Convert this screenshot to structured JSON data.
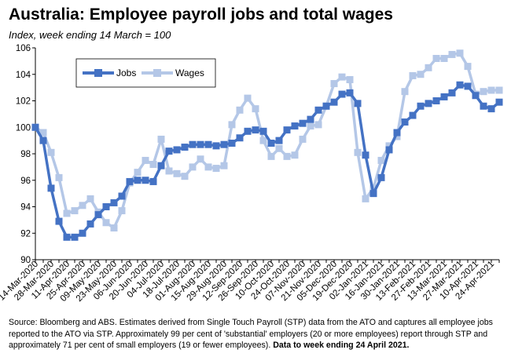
{
  "header": {
    "title": "Australia:  Employee payroll jobs and total wages",
    "subtitle": "Index, week ending 14 March = 100"
  },
  "source": {
    "text": "Source: Bloomberg and ABS.  Estimates derived from Single Touch Payroll (STP) data from the ATO and captures all employee jobs reported to the ATO via STP.  Approximately 99 per cent of 'substantial' employers (20 or more employees) report through STP and approximately 71 per cent of small employers (19 or fewer employees).",
    "bold": "Data to week ending  24 April 2021."
  },
  "chart_data": {
    "type": "line",
    "ylim": [
      90,
      106
    ],
    "yticks": [
      90,
      92,
      94,
      96,
      98,
      100,
      102,
      104,
      106
    ],
    "legend_position": "top-left",
    "grid": false,
    "x_tick_labels": [
      "14-Mar-2020",
      "28-Mar-2020",
      "11-Apr-2020",
      "25-Apr-2020",
      "09-May-2020",
      "23-May-2020",
      "06-Jun-2020",
      "20-Jun-2020",
      "04-Jul-2020",
      "18-Jul-2020",
      "01-Aug-2020",
      "15-Aug-2020",
      "29-Aug-2020",
      "12-Sep-2020",
      "26-Sep-2020",
      "10-Oct-2020",
      "24-Oct-2020",
      "07-Nov-2020",
      "21-Nov-2020",
      "05-Dec-2020",
      "19-Dec-2020",
      "02-Jan-2021",
      "16-Jan-2021",
      "30-Jan-2021",
      "13-Feb-2021",
      "27-Feb-2021",
      "13-Mar-2021",
      "27-Mar-2021",
      "10-Apr-2021",
      "24-Apr-2021"
    ],
    "series": [
      {
        "name": "Jobs",
        "color": "#4472c4",
        "values": [
          100.0,
          99.0,
          95.4,
          92.9,
          91.7,
          91.7,
          92.0,
          92.7,
          93.4,
          94.0,
          94.3,
          94.8,
          95.9,
          96.0,
          96.0,
          95.9,
          97.1,
          98.2,
          98.3,
          98.5,
          98.7,
          98.7,
          98.7,
          98.6,
          98.7,
          98.8,
          99.2,
          99.7,
          99.8,
          99.7,
          98.8,
          99.0,
          99.8,
          100.1,
          100.3,
          100.6,
          101.3,
          101.6,
          101.9,
          102.5,
          102.6,
          101.8,
          97.9,
          95.0,
          96.2,
          98.3,
          99.6,
          100.4,
          100.9,
          101.6,
          101.8,
          102.0,
          102.3,
          102.6,
          103.2,
          103.1,
          102.4,
          101.6,
          101.4,
          101.9
        ]
      },
      {
        "name": "Wages",
        "color": "#b4c7e7",
        "values": [
          100.0,
          99.6,
          98.1,
          96.2,
          93.5,
          93.7,
          94.1,
          94.6,
          93.6,
          92.8,
          92.4,
          93.7,
          95.8,
          96.6,
          97.5,
          97.2,
          99.1,
          96.7,
          96.5,
          96.3,
          97.0,
          97.6,
          97.0,
          96.9,
          97.1,
          100.2,
          101.3,
          102.2,
          101.4,
          99.0,
          97.8,
          98.4,
          97.8,
          97.9,
          99.1,
          100.1,
          100.2,
          101.6,
          103.3,
          103.8,
          103.6,
          98.1,
          94.6,
          95.4,
          97.5,
          98.6,
          99.3,
          102.7,
          103.9,
          104.0,
          104.5,
          105.2,
          105.2,
          105.5,
          105.6,
          104.6,
          102.5,
          102.7,
          102.8,
          102.8
        ]
      }
    ]
  }
}
